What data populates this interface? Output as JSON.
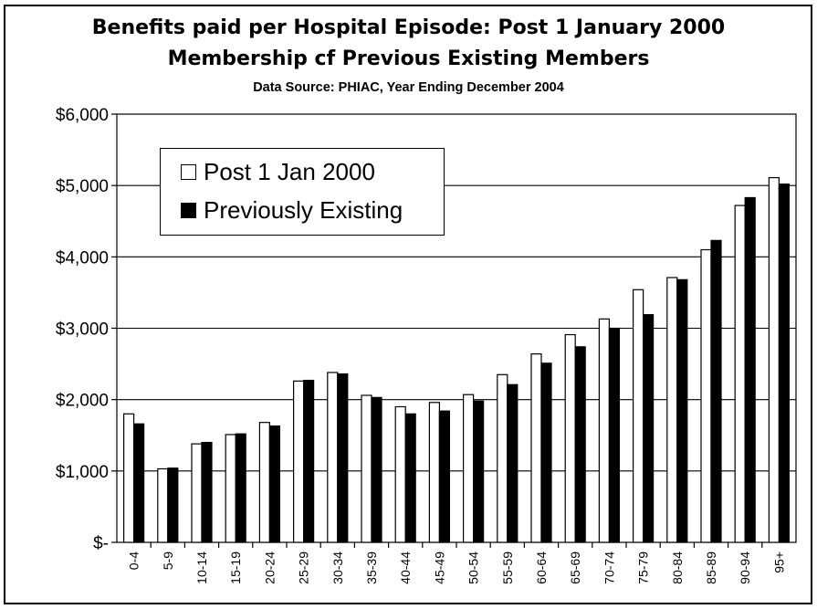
{
  "title_line1": "Benefits paid per Hospital Episode: Post 1 January 2000",
  "title_line2": "Membership cf Previous Existing Members",
  "subtitle": "Data Source: PHIAC, Year Ending December 2004",
  "colors": {
    "post": "#ffffff",
    "previous": "#000000",
    "grid": "#000000"
  },
  "chart_data": {
    "type": "bar",
    "title": "Benefits paid per Hospital Episode: Post 1 January 2000 Membership cf Previous Existing Members",
    "subtitle": "Data Source: PHIAC, Year Ending December 2004",
    "categories": [
      "0-4",
      "5-9",
      "10-14",
      "15-19",
      "20-24",
      "25-29",
      "30-34",
      "35-39",
      "40-44",
      "45-49",
      "50-54",
      "55-59",
      "60-64",
      "65-69",
      "70-74",
      "75-79",
      "80-84",
      "85-89",
      "90-94",
      "95+"
    ],
    "series": [
      {
        "name": "Post 1 Jan 2000",
        "values": [
          1800,
          1030,
          1380,
          1510,
          1680,
          2260,
          2380,
          2060,
          1900,
          1960,
          2070,
          2350,
          2640,
          2910,
          3130,
          3540,
          3710,
          4100,
          4720,
          5110
        ]
      },
      {
        "name": "Previously Existing",
        "values": [
          1660,
          1040,
          1400,
          1520,
          1630,
          2270,
          2360,
          2030,
          1800,
          1840,
          1980,
          2210,
          2510,
          2740,
          3000,
          3190,
          3680,
          4230,
          4830,
          5020
        ]
      }
    ],
    "yticks": [
      "$6,000",
      "$5,000",
      "$4,000",
      "$3,000",
      "$2,000",
      "$1,000",
      "$-"
    ],
    "ytick_values": [
      6000,
      5000,
      4000,
      3000,
      2000,
      1000,
      0
    ],
    "ylim": [
      0,
      6000
    ],
    "grid": true,
    "legend": "top-left"
  }
}
